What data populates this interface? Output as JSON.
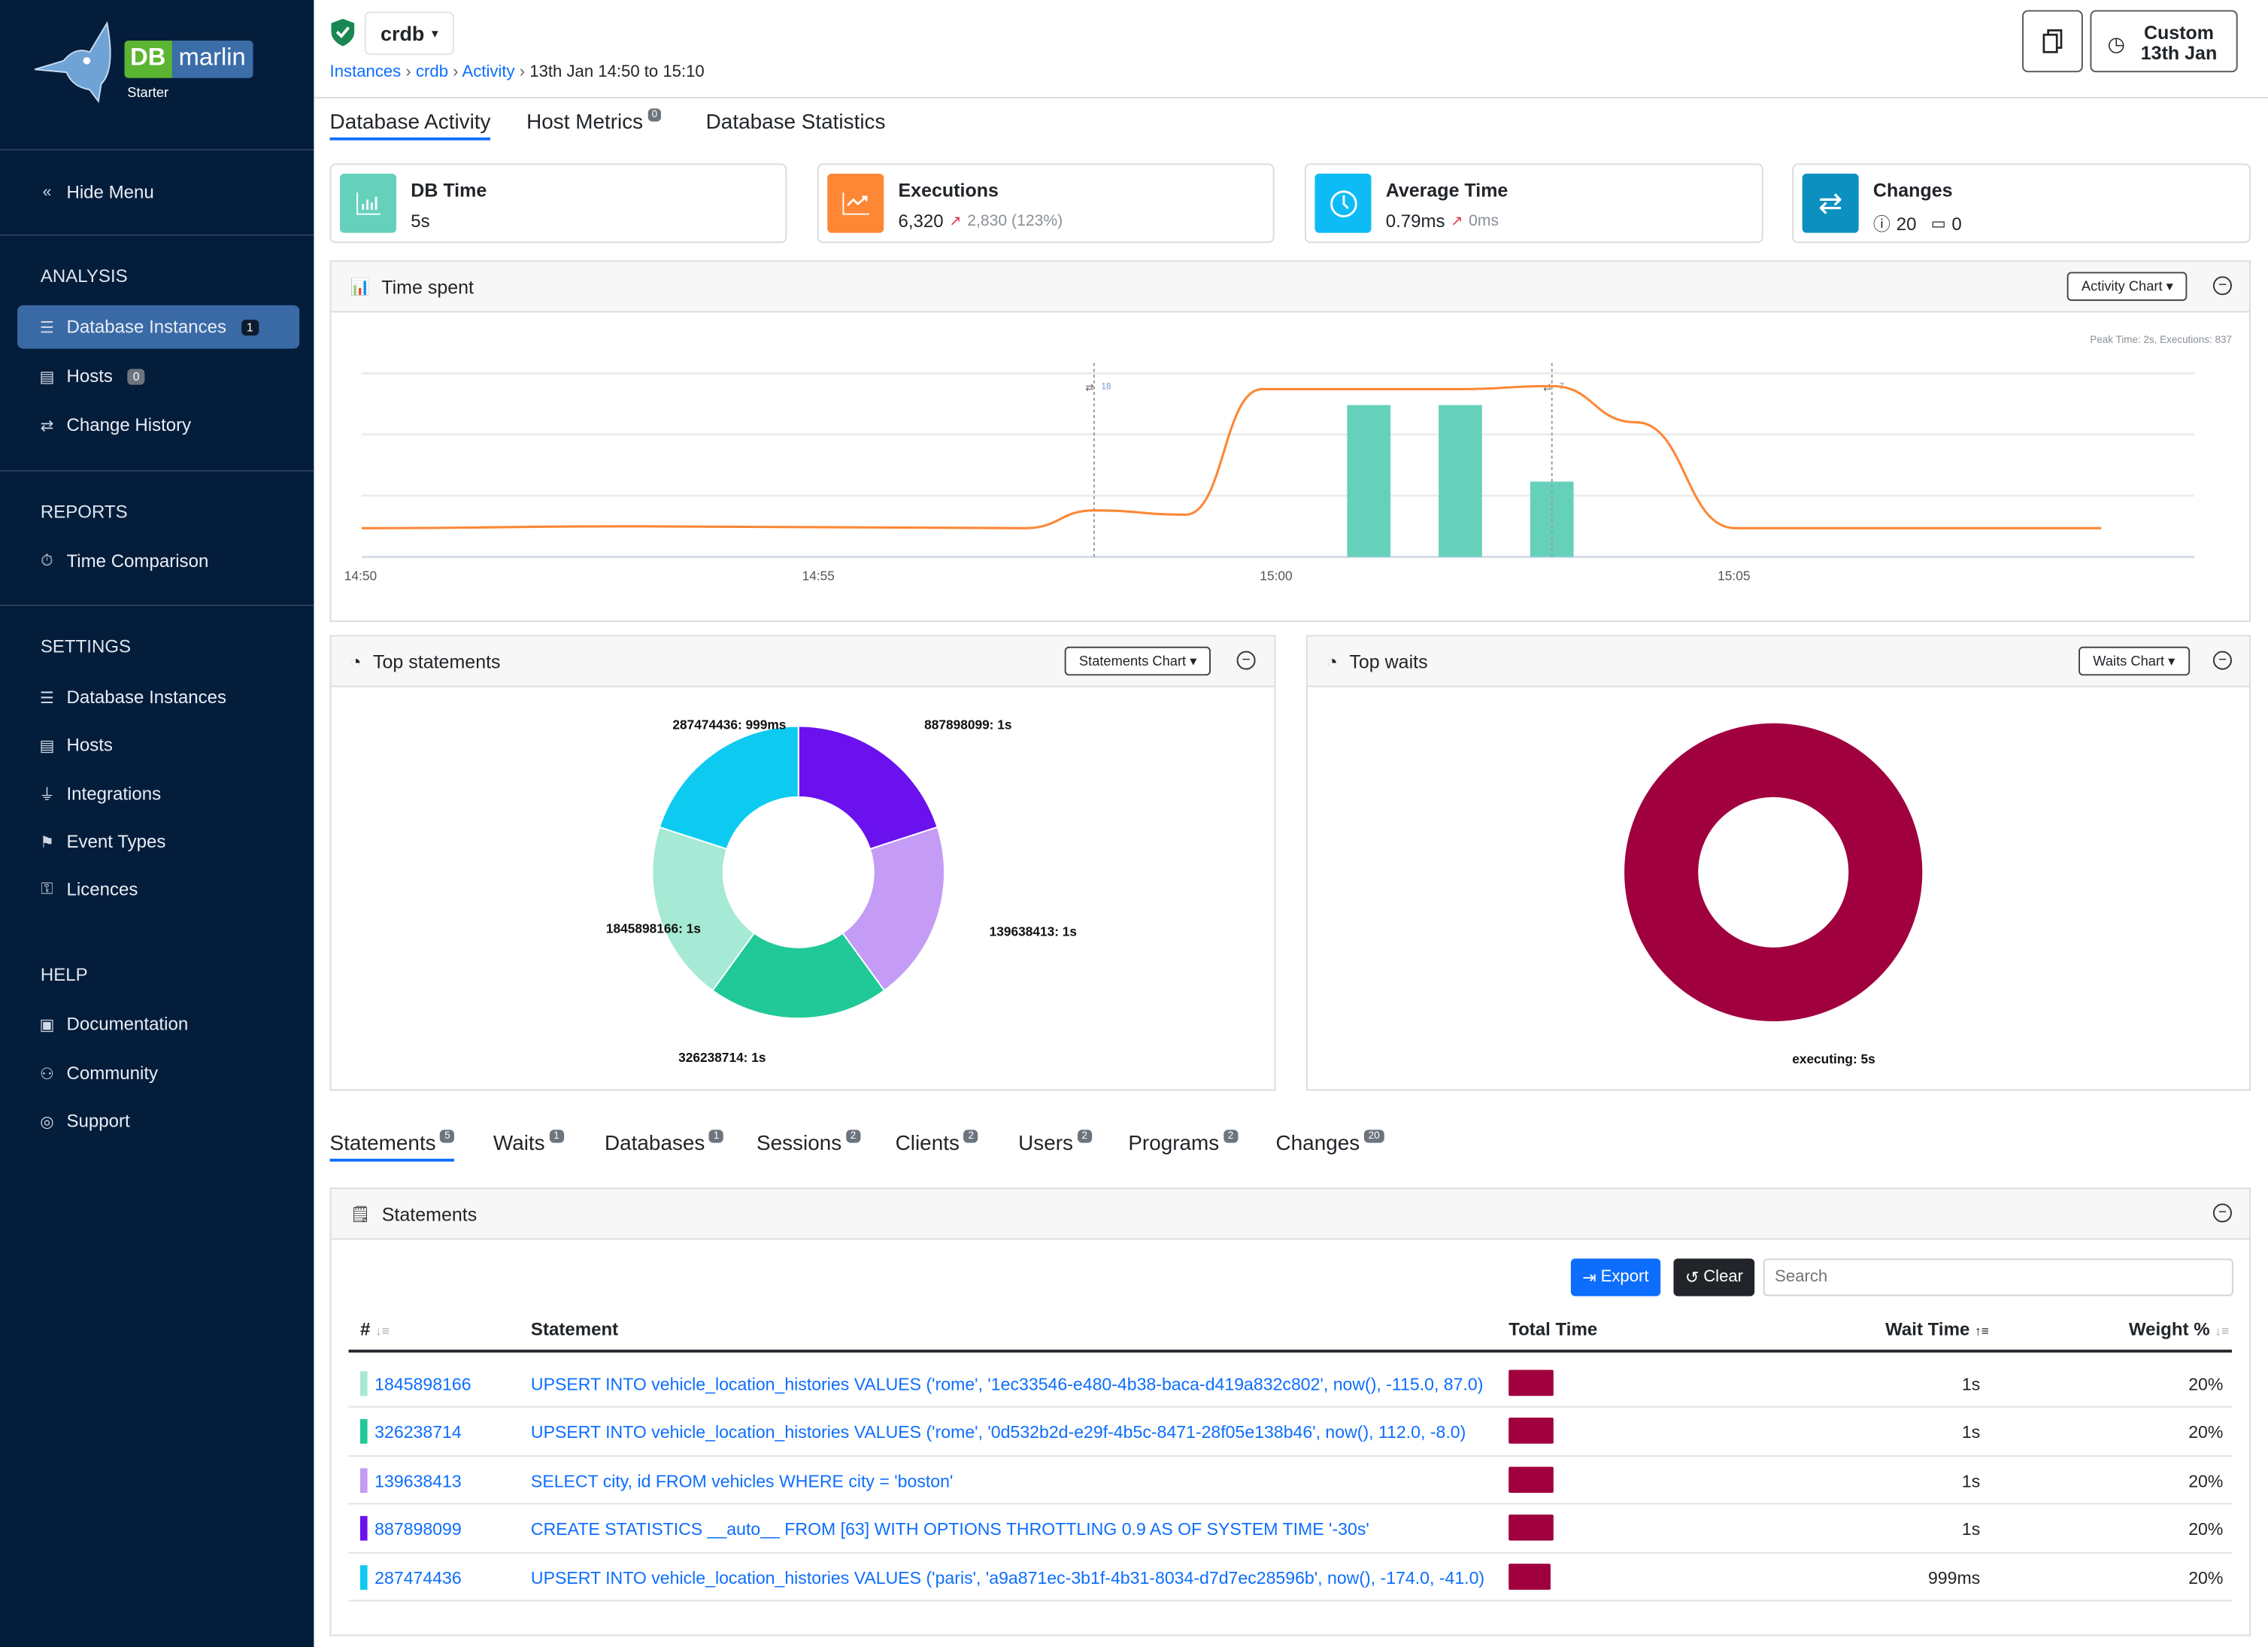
{
  "brand": {
    "logo_text": "DB marlin",
    "edition": "Starter"
  },
  "sidebar": {
    "hide_menu": "Hide Menu",
    "sections": [
      {
        "title": "ANALYSIS",
        "items": [
          {
            "label": "Database Instances",
            "badge": "1",
            "active": true
          },
          {
            "label": "Hosts",
            "badge": "0"
          },
          {
            "label": "Change History"
          }
        ]
      },
      {
        "title": "REPORTS",
        "items": [
          {
            "label": "Time Comparison"
          }
        ]
      },
      {
        "title": "SETTINGS",
        "items": [
          {
            "label": "Database Instances"
          },
          {
            "label": "Hosts"
          },
          {
            "label": "Integrations"
          },
          {
            "label": "Event Types"
          },
          {
            "label": "Licences"
          }
        ]
      },
      {
        "title": "HELP",
        "items": [
          {
            "label": "Documentation"
          },
          {
            "label": "Community"
          },
          {
            "label": "Support"
          }
        ]
      }
    ]
  },
  "header": {
    "instance": "crdb",
    "breadcrumb": [
      "Instances",
      "crdb",
      "Activity",
      "13th Jan 14:50 to 15:10"
    ],
    "time_button": {
      "line1": "Custom",
      "line2": "13th Jan"
    }
  },
  "tabs": [
    {
      "label": "Database Activity",
      "active": true
    },
    {
      "label": "Host Metrics",
      "badge": "0"
    },
    {
      "label": "Database Statistics"
    }
  ],
  "kpis": {
    "db_time": {
      "title": "DB Time",
      "value": "5s",
      "color": "#66d1bb"
    },
    "executions": {
      "title": "Executions",
      "value": "6,320",
      "delta": "2,830 (123%)",
      "color": "#fd8735"
    },
    "average_time": {
      "title": "Average Time",
      "value": "0.79ms",
      "delta": "0ms",
      "color": "#0dbcf5"
    },
    "changes": {
      "title": "Changes",
      "info_count": "20",
      "calendar_count": "0",
      "color": "#0b90bf"
    }
  },
  "time_spent": {
    "title": "Time spent",
    "dropdown": "Activity Chart",
    "peak_note": "Peak Time: 2s, Executions: 837"
  },
  "chart_data": [
    {
      "type": "line",
      "title": "Time spent",
      "x_ticks": [
        "14:50",
        "14:55",
        "15:00",
        "15:05"
      ],
      "xlim": [
        "14:50",
        "15:10"
      ],
      "ylim": [
        0,
        3
      ],
      "grid": true,
      "line": {
        "color": "#fd8735",
        "x": [
          "14:50",
          "14:53",
          "14:57:15",
          "14:58",
          "14:59",
          "14:59:50",
          "15:02",
          "15:03",
          "15:03:55",
          "15:05",
          "15:09"
        ],
        "y": [
          0.47,
          0.5,
          0.47,
          0.76,
          0.69,
          2.74,
          2.74,
          2.79,
          2.2,
          0.47,
          0.47
        ]
      },
      "bars": {
        "color": "#66d1bb",
        "x": [
          "15:01",
          "15:02",
          "15:03"
        ],
        "y": [
          2.48,
          2.48,
          1.23
        ]
      },
      "markers": [
        {
          "x": "14:58",
          "label": "18"
        },
        {
          "x": "15:03",
          "label": "7"
        }
      ]
    },
    {
      "type": "pie",
      "title": "Top statements",
      "dropdown": "Statements Chart",
      "donut": true,
      "slices": [
        {
          "label": "887898099: 1s",
          "value": 20,
          "color": "#6a11ee"
        },
        {
          "label": "139638413: 1s",
          "value": 20,
          "color": "#c49cf5"
        },
        {
          "label": "326238714: 1s",
          "value": 20,
          "color": "#20c997"
        },
        {
          "label": "1845898166: 1s",
          "value": 20,
          "color": "#a6e9d5"
        },
        {
          "label": "287474436: 999ms",
          "value": 20,
          "color": "#0dcaf0"
        }
      ]
    },
    {
      "type": "pie",
      "title": "Top waits",
      "dropdown": "Waits Chart",
      "donut": true,
      "slices": [
        {
          "label": "executing: 5s",
          "value": 100,
          "color": "#a0003e"
        }
      ]
    }
  ],
  "bottom_tabs": [
    {
      "label": "Statements",
      "badge": "5",
      "active": true
    },
    {
      "label": "Waits",
      "badge": "1"
    },
    {
      "label": "Databases",
      "badge": "1"
    },
    {
      "label": "Sessions",
      "badge": "2"
    },
    {
      "label": "Clients",
      "badge": "2"
    },
    {
      "label": "Users",
      "badge": "2"
    },
    {
      "label": "Programs",
      "badge": "2"
    },
    {
      "label": "Changes",
      "badge": "20"
    }
  ],
  "statements": {
    "title": "Statements",
    "export": "Export",
    "clear": "Clear",
    "search_placeholder": "Search",
    "columns": [
      "#",
      "Statement",
      "Total Time",
      "Wait Time",
      "Weight %"
    ],
    "rows": [
      {
        "id": "1845898166",
        "sql": "UPSERT INTO vehicle_location_histories VALUES ('rome', '1ec33546-e480-4b38-baca-d419a832c802', now(), -115.0, 87.0)",
        "wait": "1s",
        "weight": "20%",
        "color": "#a6e9d5"
      },
      {
        "id": "326238714",
        "sql": "UPSERT INTO vehicle_location_histories VALUES ('rome', '0d532b2d-e29f-4b5c-8471-28f05e138b46', now(), 112.0, -8.0)",
        "wait": "1s",
        "weight": "20%",
        "color": "#20c997"
      },
      {
        "id": "139638413",
        "sql": "SELECT city, id FROM vehicles WHERE city = 'boston'",
        "wait": "1s",
        "weight": "20%",
        "color": "#c49cf5"
      },
      {
        "id": "887898099",
        "sql": "CREATE STATISTICS __auto__ FROM [63] WITH OPTIONS THROTTLING 0.9 AS OF SYSTEM TIME '-30s'",
        "wait": "1s",
        "weight": "20%",
        "color": "#6a11ee"
      },
      {
        "id": "287474436",
        "sql": "UPSERT INTO vehicle_location_histories VALUES ('paris', 'a9a871ec-3b1f-4b31-8034-d7d7ec28596b', now(), -174.0, -41.0)",
        "wait": "999ms",
        "weight": "20%",
        "color": "#0dcaf0"
      }
    ]
  }
}
